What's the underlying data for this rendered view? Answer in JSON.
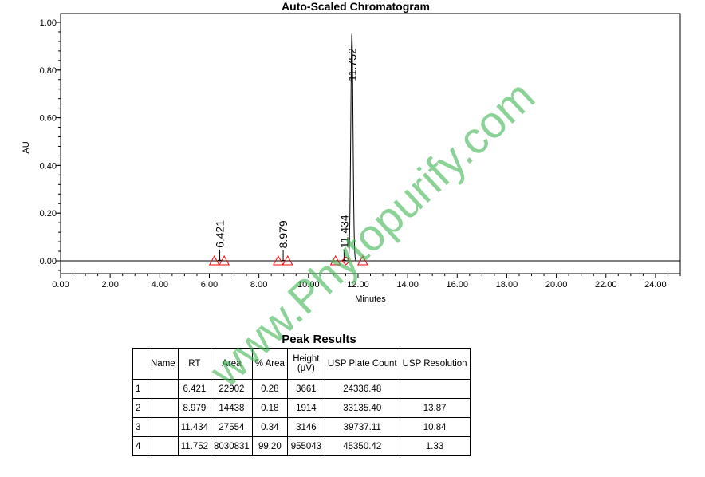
{
  "chart_data": {
    "type": "line",
    "title": "Auto-Scaled Chromatogram",
    "xlabel": "Minutes",
    "ylabel": "AU",
    "xlim": [
      0,
      25
    ],
    "ylim": [
      -0.05,
      1.0
    ],
    "x_ticks": [
      "0.00",
      "2.00",
      "4.00",
      "6.00",
      "8.00",
      "10.00",
      "12.00",
      "14.00",
      "16.00",
      "18.00",
      "20.00",
      "22.00",
      "24.00"
    ],
    "y_ticks": [
      "0.00",
      "0.20",
      "0.40",
      "0.60",
      "0.80",
      "1.00"
    ],
    "grid": false,
    "peaks": [
      {
        "label": "6.421",
        "rt": 6.421,
        "height_au": 0.003661,
        "start": 6.2,
        "end": 6.6
      },
      {
        "label": "8.979",
        "rt": 8.979,
        "height_au": 0.001914,
        "start": 8.78,
        "end": 9.16
      },
      {
        "label": "11.434",
        "rt": 11.434,
        "height_au": 0.003146,
        "start": 11.09,
        "end": 11.51
      },
      {
        "label": "11.752",
        "rt": 11.752,
        "height_au": 0.955043,
        "start": 11.51,
        "end": 12.19
      }
    ],
    "marker_color": "#ff0000",
    "trace_color": "#000000"
  },
  "table": {
    "title": "Peak Results",
    "headers": [
      "",
      "Name",
      "RT",
      "Area",
      "% Area",
      "Height (µV)",
      "USP Plate Count",
      "USP Resolution"
    ],
    "rows": [
      [
        "1",
        "",
        "6.421",
        "22902",
        "0.28",
        "3661",
        "24336.48",
        ""
      ],
      [
        "2",
        "",
        "8.979",
        "14438",
        "0.18",
        "1914",
        "33135.40",
        "13.87"
      ],
      [
        "3",
        "",
        "11.434",
        "27554",
        "0.34",
        "3146",
        "39737.11",
        "10.84"
      ],
      [
        "4",
        "",
        "11.752",
        "8030831",
        "99.20",
        "955043",
        "45350.42",
        "1.33"
      ]
    ]
  },
  "watermark": "www.Phytopurify.com",
  "watermark_color": "#3cb450"
}
